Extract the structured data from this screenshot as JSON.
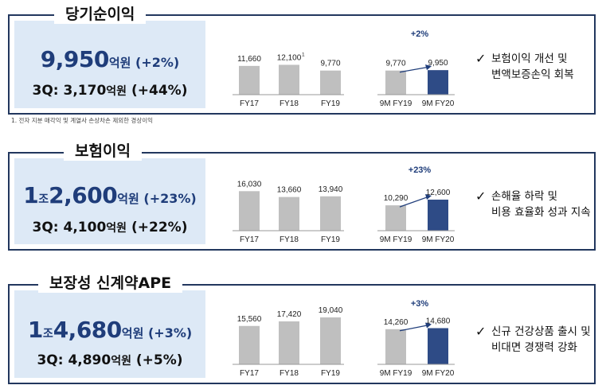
{
  "footnote": "1. 전자 지분 매각익 및 계열사 손상차손 제외한 경상이익",
  "sections": [
    {
      "title": "당기순이익",
      "kpi": {
        "jo": "",
        "main_num": "9,950",
        "main_unit": "억원",
        "main_pct": "(+2%)",
        "sub_label": "3Q: ",
        "sub_num": "3,170",
        "sub_unit": "억원",
        "sub_pct": "(+44%)"
      },
      "bullet": [
        "보험이익 개선 및",
        "변액보증손익 회복"
      ],
      "growth_label": "+2%"
    },
    {
      "title": "보험이익",
      "kpi": {
        "jo": "조",
        "main_num": "2,600",
        "main_prefix": "1",
        "main_unit": "억원",
        "main_pct": "(+23%)",
        "sub_label": "3Q: ",
        "sub_num": "4,100",
        "sub_unit": "억원",
        "sub_pct": "(+22%)"
      },
      "bullet": [
        "손해율 하락 및",
        "비용 효율화 성과 지속"
      ],
      "growth_label": "+23%"
    },
    {
      "title": "보장성 신계약APE",
      "kpi": {
        "jo": "조",
        "main_num": "4,680",
        "main_prefix": "1",
        "main_unit": "억원",
        "main_pct": "(+3%)",
        "sub_label": "3Q: ",
        "sub_num": "4,890",
        "sub_unit": "억원",
        "sub_pct": "(+5%)"
      },
      "bullet": [
        "신규 건강상품 출시 및",
        "비대면 경쟁력 강화"
      ],
      "growth_label": "+3%"
    }
  ],
  "chart_data": [
    {
      "type": "bar",
      "title": "당기순이익",
      "annual": {
        "categories": [
          "FY17",
          "FY18",
          "FY19"
        ],
        "values": [
          11660,
          12100,
          9770
        ],
        "labels": [
          "11,660",
          "12,100",
          "9,770"
        ],
        "superscripts": [
          "",
          "1",
          ""
        ]
      },
      "nine_month": {
        "categories": [
          "9M FY19",
          "9M FY20"
        ],
        "values": [
          9770,
          9950
        ],
        "labels": [
          "9,770",
          "9,950"
        ],
        "growth": "+2%"
      },
      "colors": {
        "past": "#bfbfbf",
        "current": "#2e4b86"
      }
    },
    {
      "type": "bar",
      "title": "보험이익",
      "annual": {
        "categories": [
          "FY17",
          "FY18",
          "FY19"
        ],
        "values": [
          16030,
          13660,
          13940
        ],
        "labels": [
          "16,030",
          "13,660",
          "13,940"
        ],
        "superscripts": [
          "",
          "",
          ""
        ]
      },
      "nine_month": {
        "categories": [
          "9M FY19",
          "9M FY20"
        ],
        "values": [
          10290,
          12600
        ],
        "labels": [
          "10,290",
          "12,600"
        ],
        "growth": "+23%"
      },
      "colors": {
        "past": "#bfbfbf",
        "current": "#2e4b86"
      }
    },
    {
      "type": "bar",
      "title": "보장성 신계약APE",
      "annual": {
        "categories": [
          "FY17",
          "FY18",
          "FY19"
        ],
        "values": [
          15560,
          17420,
          19040
        ],
        "labels": [
          "15,560",
          "17,420",
          "19,040"
        ],
        "superscripts": [
          "",
          "",
          ""
        ]
      },
      "nine_month": {
        "categories": [
          "9M FY19",
          "9M FY20"
        ],
        "values": [
          14260,
          14680
        ],
        "labels": [
          "14,260",
          "14,680"
        ],
        "growth": "+3%"
      },
      "colors": {
        "past": "#bfbfbf",
        "current": "#2e4b86"
      }
    }
  ]
}
